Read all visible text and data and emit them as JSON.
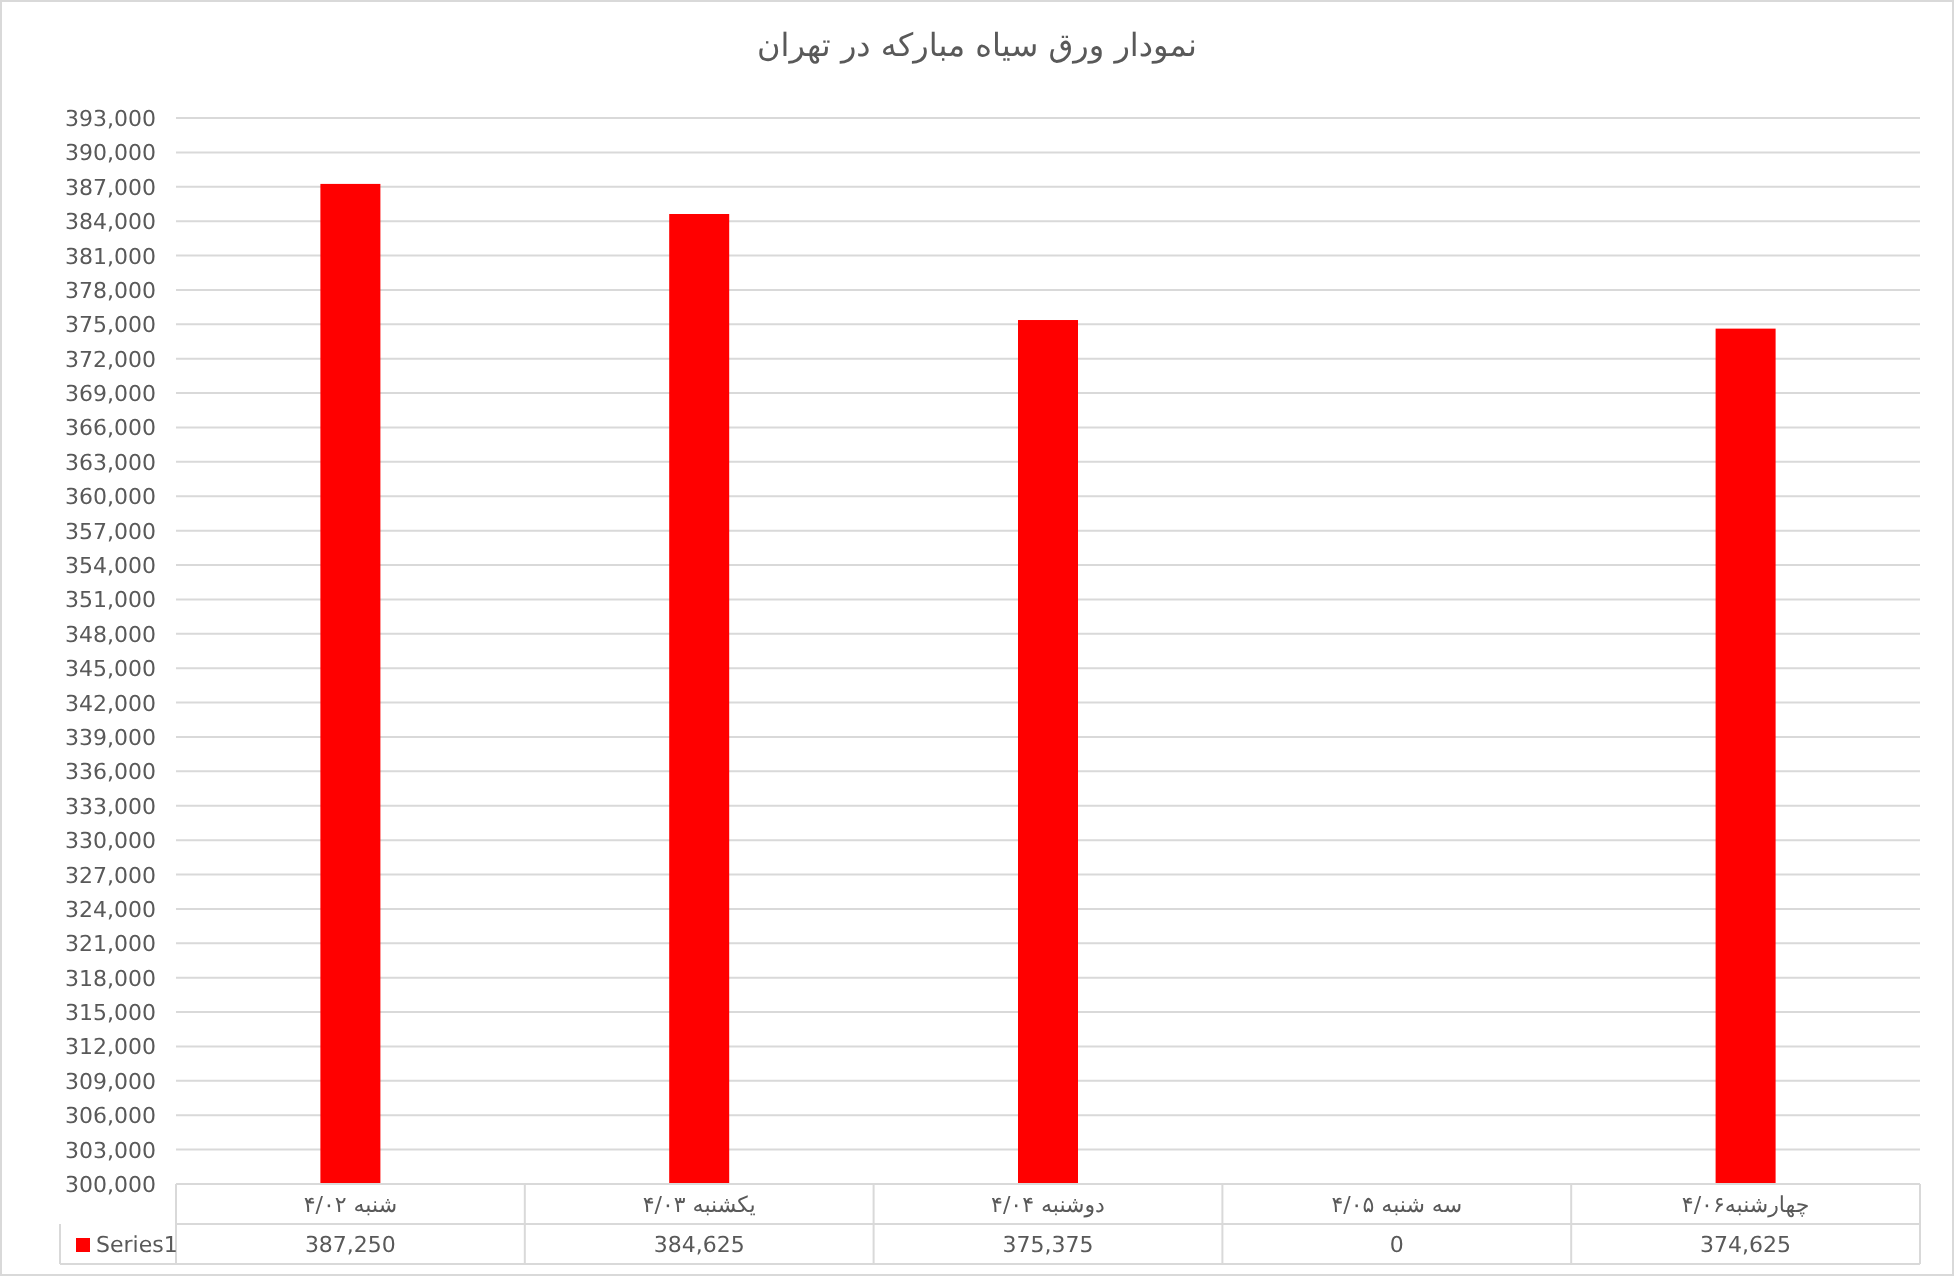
{
  "chart_data": {
    "type": "bar",
    "title": "نمودار ورق سیاه مبارکه در تهران",
    "categories": [
      "شنبه ۴/۰۲",
      "یکشنبه ۴/۰۳",
      "دوشنبه ۴/۰۴",
      "سه شنبه ۴/۰۵",
      "چهارشنبه۴/۰۶"
    ],
    "series": [
      {
        "name": "Series1",
        "color": "#ff0000",
        "values": [
          387250,
          384625,
          375375,
          null,
          374625
        ],
        "value_labels": [
          "387,250",
          "384,625",
          "375,375",
          "0",
          "374,625"
        ]
      }
    ],
    "ylim": [
      300000,
      393000
    ],
    "yticks": [
      {
        "value": 300000,
        "label": "300,000"
      },
      {
        "value": 303000,
        "label": "303,000"
      },
      {
        "value": 306000,
        "label": "306,000"
      },
      {
        "value": 309000,
        "label": "309,000"
      },
      {
        "value": 312000,
        "label": "312,000"
      },
      {
        "value": 315000,
        "label": "315,000"
      },
      {
        "value": 318000,
        "label": "318,000"
      },
      {
        "value": 321000,
        "label": "321,000"
      },
      {
        "value": 324000,
        "label": "324,000"
      },
      {
        "value": 327000,
        "label": "327,000"
      },
      {
        "value": 330000,
        "label": "330,000"
      },
      {
        "value": 333000,
        "label": "333,000"
      },
      {
        "value": 336000,
        "label": "336,000"
      },
      {
        "value": 339000,
        "label": "339,000"
      },
      {
        "value": 342000,
        "label": "342,000"
      },
      {
        "value": 345000,
        "label": "345,000"
      },
      {
        "value": 348000,
        "label": "348,000"
      },
      {
        "value": 351000,
        "label": "351,000"
      },
      {
        "value": 354000,
        "label": "354,000"
      },
      {
        "value": 357000,
        "label": "357,000"
      },
      {
        "value": 360000,
        "label": "360,000"
      },
      {
        "value": 363000,
        "label": "363,000"
      },
      {
        "value": 366000,
        "label": "366,000"
      },
      {
        "value": 369000,
        "label": "369,000"
      },
      {
        "value": 372000,
        "label": "372,000"
      },
      {
        "value": 375000,
        "label": "375,000"
      },
      {
        "value": 378000,
        "label": "378,000"
      },
      {
        "value": 381000,
        "label": "381,000"
      },
      {
        "value": 384000,
        "label": "384,000"
      },
      {
        "value": 387000,
        "label": "387,000"
      },
      {
        "value": 390000,
        "label": "390,000"
      },
      {
        "value": 393000,
        "label": "393,000"
      }
    ],
    "grid": "y",
    "legend": "bottom"
  }
}
